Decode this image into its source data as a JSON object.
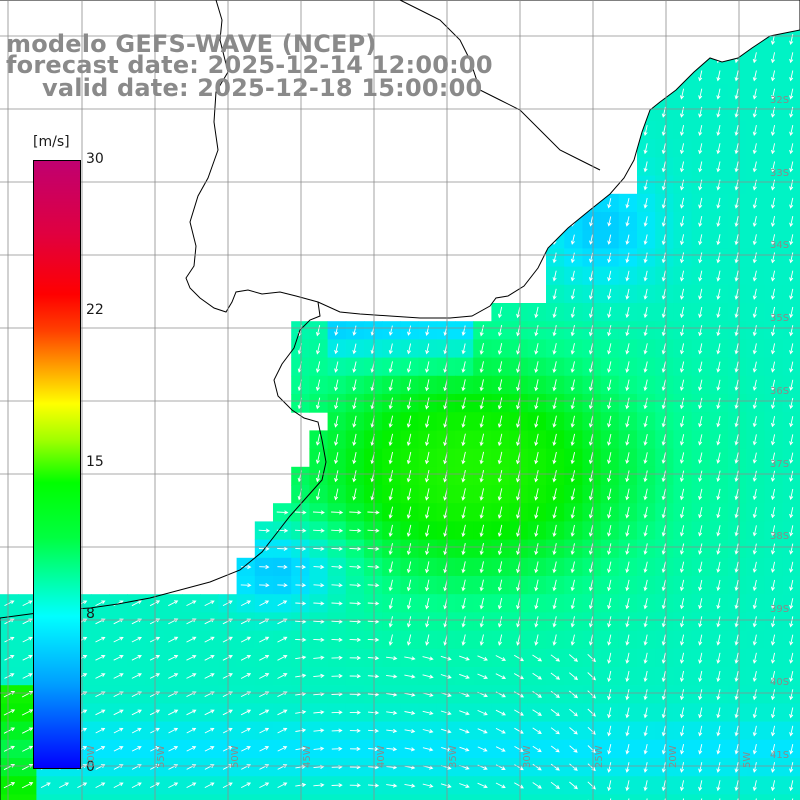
{
  "titles": {
    "model": "modelo GEFS-WAVE (NCEP)",
    "forecast": "forecast date: 2025-12-14 12:00:00",
    "valid": "valid date: 2025-12-18 15:00:00"
  },
  "colorbar": {
    "unit": "[m/s]",
    "ticks": [
      30,
      22,
      15,
      8,
      0
    ],
    "tick_labels": [
      "30",
      "22",
      "15",
      "8",
      "0"
    ],
    "colors": [
      "#0000ff",
      "#00a0ff",
      "#00ffff",
      "#00ff40",
      "#00ff00",
      "#a0ff00",
      "#ffff00",
      "#ffa000",
      "#ff0000",
      "#c00070"
    ]
  },
  "lat_labels": [
    "32S",
    "33S",
    "34S",
    "35S",
    "36S",
    "37S",
    "38S",
    "39S",
    "40S",
    "41S"
  ],
  "lon_labels": [
    "60W",
    "55W",
    "50W",
    "45W",
    "40W",
    "35W",
    "30W",
    "25W",
    "20W",
    "15W",
    "10W",
    "5W"
  ],
  "field": {
    "name": "wind speed",
    "unit": "m/s",
    "land_color": "#ffffff",
    "arrow_color": "#ffffff"
  }
}
